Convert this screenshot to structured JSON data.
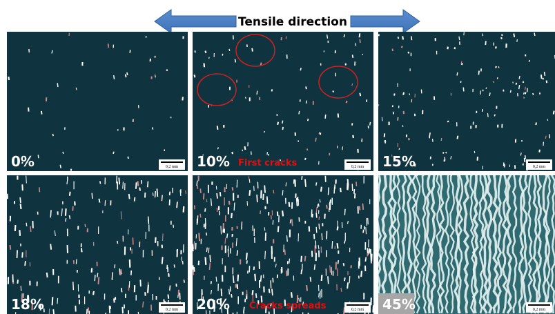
{
  "header": {
    "title": "Tensile direction"
  },
  "panels": [
    {
      "label": "0%",
      "scale_bar": "0,2 mm"
    },
    {
      "label": "10%",
      "annotation": "First cracks",
      "scale_bar": "0,2 mm"
    },
    {
      "label": "15%",
      "scale_bar": "0,2 mm"
    },
    {
      "label": "18%",
      "scale_bar": "0,2 mm"
    },
    {
      "label": "20%",
      "annotation": "Cracks spreads",
      "scale_bar": "0,2 mm"
    },
    {
      "label": "45%",
      "scale_bar": "0,2 mm"
    }
  ]
}
